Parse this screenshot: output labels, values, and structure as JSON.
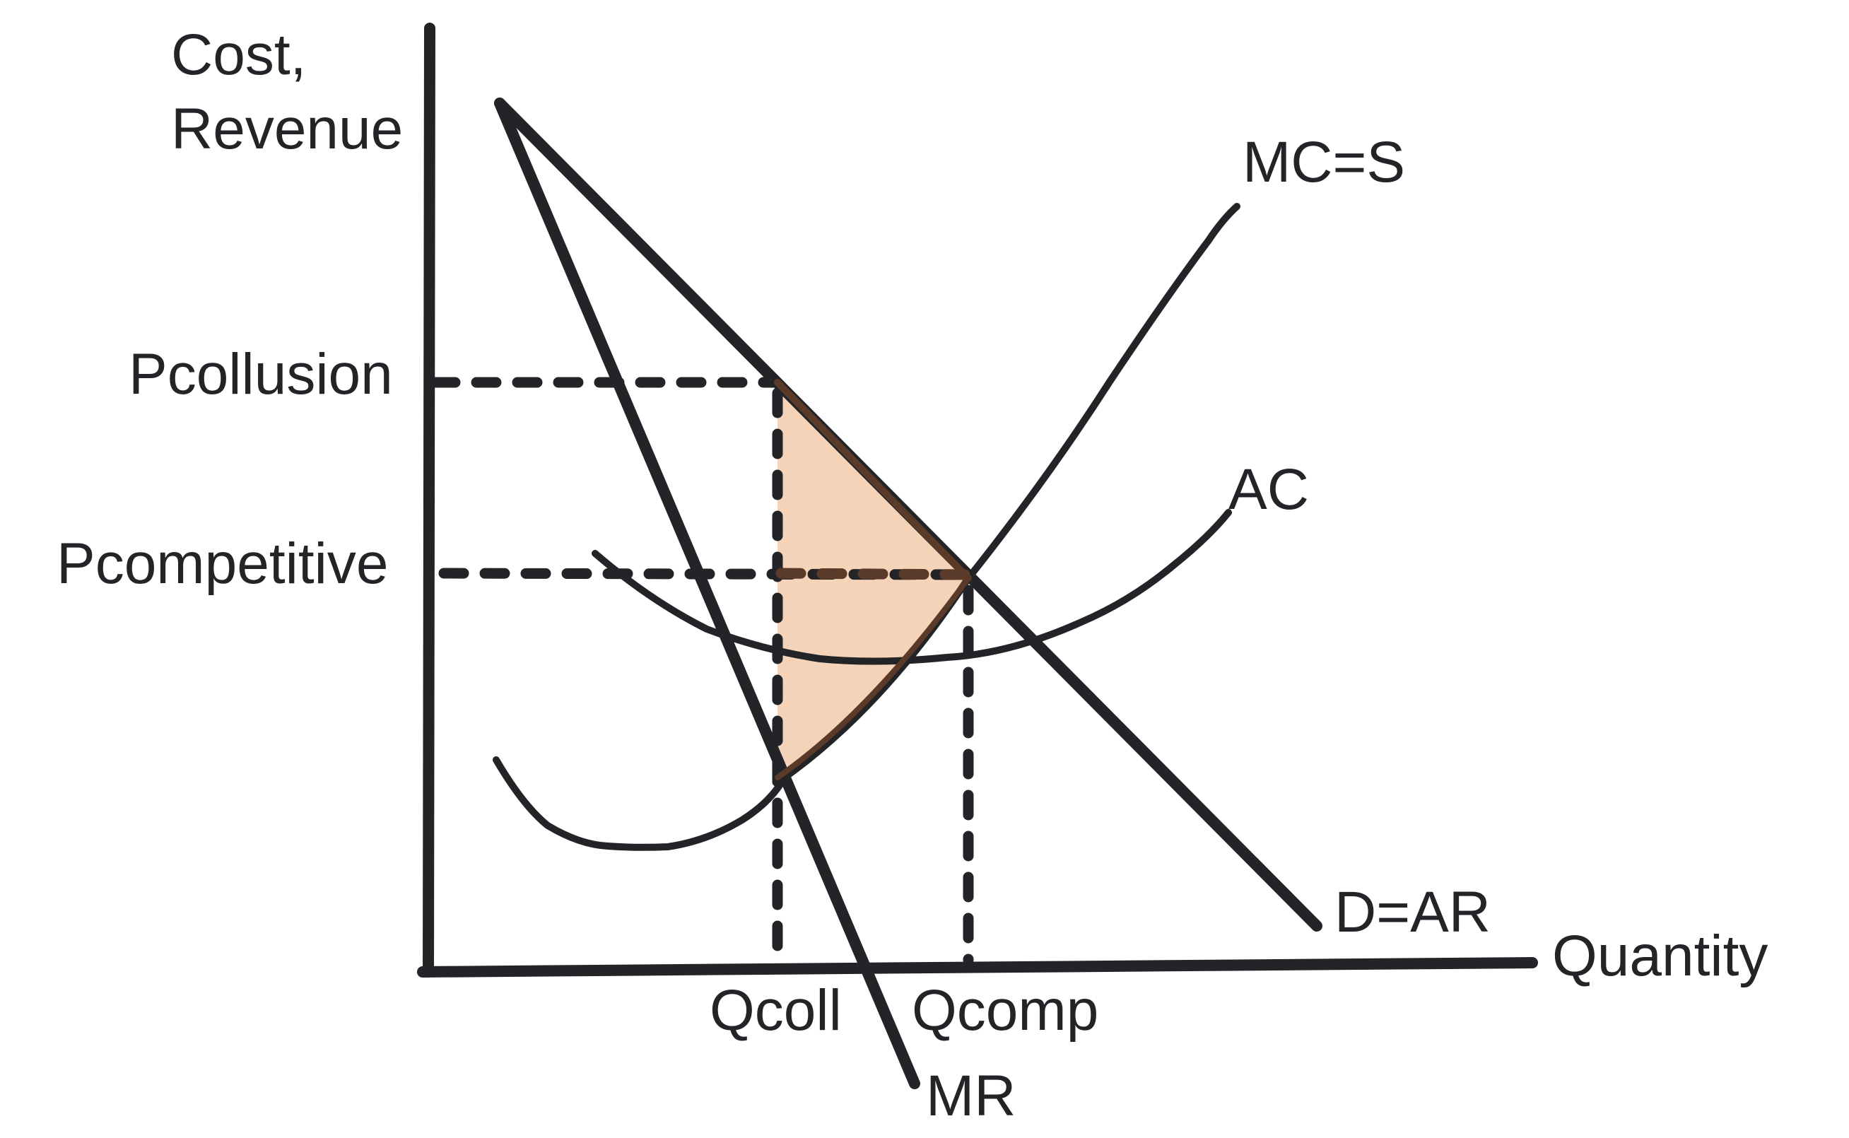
{
  "diagram": {
    "labels": {
      "y_axis_line1": "Cost,",
      "y_axis_line2": "Revenue",
      "x_axis": "Quantity",
      "p_collusion": "Pcollusion",
      "p_competitive": "Pcompetitive",
      "q_collusion": "Qcoll",
      "q_competitive": "Qcomp",
      "mc_curve": "MC=S",
      "ac_curve": "AC",
      "demand_curve": "D=AR",
      "mr_curve": "MR"
    },
    "colors": {
      "ink": "#222428",
      "deadweight_loss_fill": "#f5d3b8",
      "deadweight_loss_edge": "#5a3a28"
    }
  }
}
